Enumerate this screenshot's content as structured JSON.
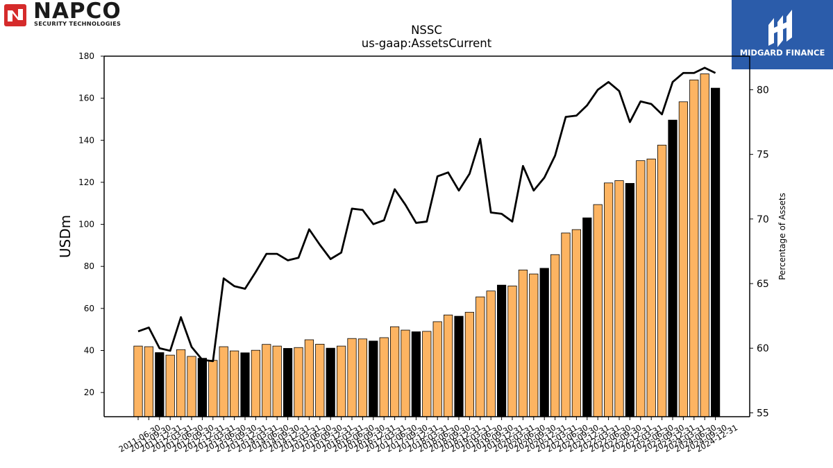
{
  "logos": {
    "napco_name": "NAPCO",
    "napco_sub": "SECURITY TECHNOLOGIES",
    "midgard_name": "MIDGARD FINANCE"
  },
  "chart_data": {
    "type": "bar",
    "title": "NSSC",
    "subtitle": "us-gaap:AssetsCurrent",
    "ylabel": "USDm",
    "y2label": "Percentage of Assets",
    "ylim": [
      8.5,
      180
    ],
    "y2lim": [
      54.7,
      82.6
    ],
    "yticks": [
      20,
      40,
      60,
      80,
      100,
      120,
      140,
      160,
      180
    ],
    "y2ticks": [
      55,
      60,
      65,
      70,
      75,
      80
    ],
    "bar_colors": {
      "quarter": "#fdb462",
      "fiscal_year_end": "#000000"
    },
    "line_color": "#000000",
    "categories": [
      "2011-06-30",
      "2011-09-30",
      "2011-12-31",
      "2012-03-31",
      "2012-06-30",
      "2012-09-30",
      "2012-12-31",
      "2013-03-31",
      "2013-06-30",
      "2013-09-30",
      "2013-12-31",
      "2014-03-31",
      "2014-06-30",
      "2014-09-30",
      "2014-12-31",
      "2015-03-31",
      "2015-06-30",
      "2015-09-30",
      "2015-12-31",
      "2016-03-31",
      "2016-06-30",
      "2016-09-30",
      "2016-12-31",
      "2017-03-31",
      "2017-06-30",
      "2017-09-30",
      "2017-12-31",
      "2018-03-31",
      "2018-06-30",
      "2018-09-30",
      "2018-12-31",
      "2019-03-31",
      "2019-06-30",
      "2019-09-30",
      "2019-12-31",
      "2020-03-31",
      "2020-06-30",
      "2020-09-30",
      "2020-12-31",
      "2021-03-31",
      "2021-06-30",
      "2021-09-30",
      "2021-12-31",
      "2022-03-31",
      "2022-06-30",
      "2022-09-30",
      "2022-12-31",
      "2023-03-31",
      "2023-06-30",
      "2023-09-30",
      "2023-12-31",
      "2024-03-31",
      "2024-06-30",
      "2024-09-30",
      "2024-12-31"
    ],
    "values": [
      42.1,
      41.8,
      39.0,
      37.8,
      40.4,
      37.2,
      36.3,
      35.3,
      41.8,
      39.8,
      38.9,
      40.1,
      42.9,
      42.1,
      41.0,
      41.4,
      45.1,
      43.0,
      41.1,
      42.1,
      45.7,
      45.5,
      44.5,
      46.1,
      51.3,
      49.7,
      48.9,
      49.1,
      53.7,
      56.9,
      56.3,
      58.2,
      65.5,
      68.3,
      71.1,
      70.7,
      78.3,
      76.4,
      79.1,
      85.6,
      95.9,
      97.5,
      103.1,
      109.4,
      119.7,
      120.8,
      119.5,
      130.3,
      131.1,
      137.7,
      149.6,
      158.3,
      168.7,
      171.6,
      164.8
    ],
    "fiscal_year_end_flags": [
      0,
      0,
      1,
      0,
      0,
      0,
      1,
      0,
      0,
      0,
      1,
      0,
      0,
      0,
      1,
      0,
      0,
      0,
      1,
      0,
      0,
      0,
      1,
      0,
      0,
      0,
      1,
      0,
      0,
      0,
      1,
      0,
      0,
      0,
      1,
      0,
      0,
      0,
      1,
      0,
      0,
      0,
      1,
      0,
      0,
      0,
      1,
      0,
      0,
      0,
      1,
      0,
      0,
      0,
      1
    ],
    "line_values": [
      61.3,
      61.6,
      60.0,
      59.8,
      62.4,
      60.1,
      59.1,
      59.0,
      65.4,
      64.8,
      64.6,
      65.9,
      67.3,
      67.3,
      66.8,
      67.0,
      69.2,
      68.0,
      66.9,
      67.4,
      70.8,
      70.7,
      69.6,
      69.9,
      72.3,
      71.1,
      69.7,
      69.8,
      73.3,
      73.6,
      72.2,
      73.5,
      76.2,
      70.5,
      70.4,
      69.8,
      74.1,
      72.2,
      73.2,
      74.9,
      77.9,
      78.0,
      78.8,
      80.0,
      80.6,
      79.9,
      77.5,
      79.1,
      78.9,
      78.1,
      80.6,
      81.3,
      81.3,
      81.7,
      81.3
    ],
    "grid": false,
    "legend": "none"
  }
}
